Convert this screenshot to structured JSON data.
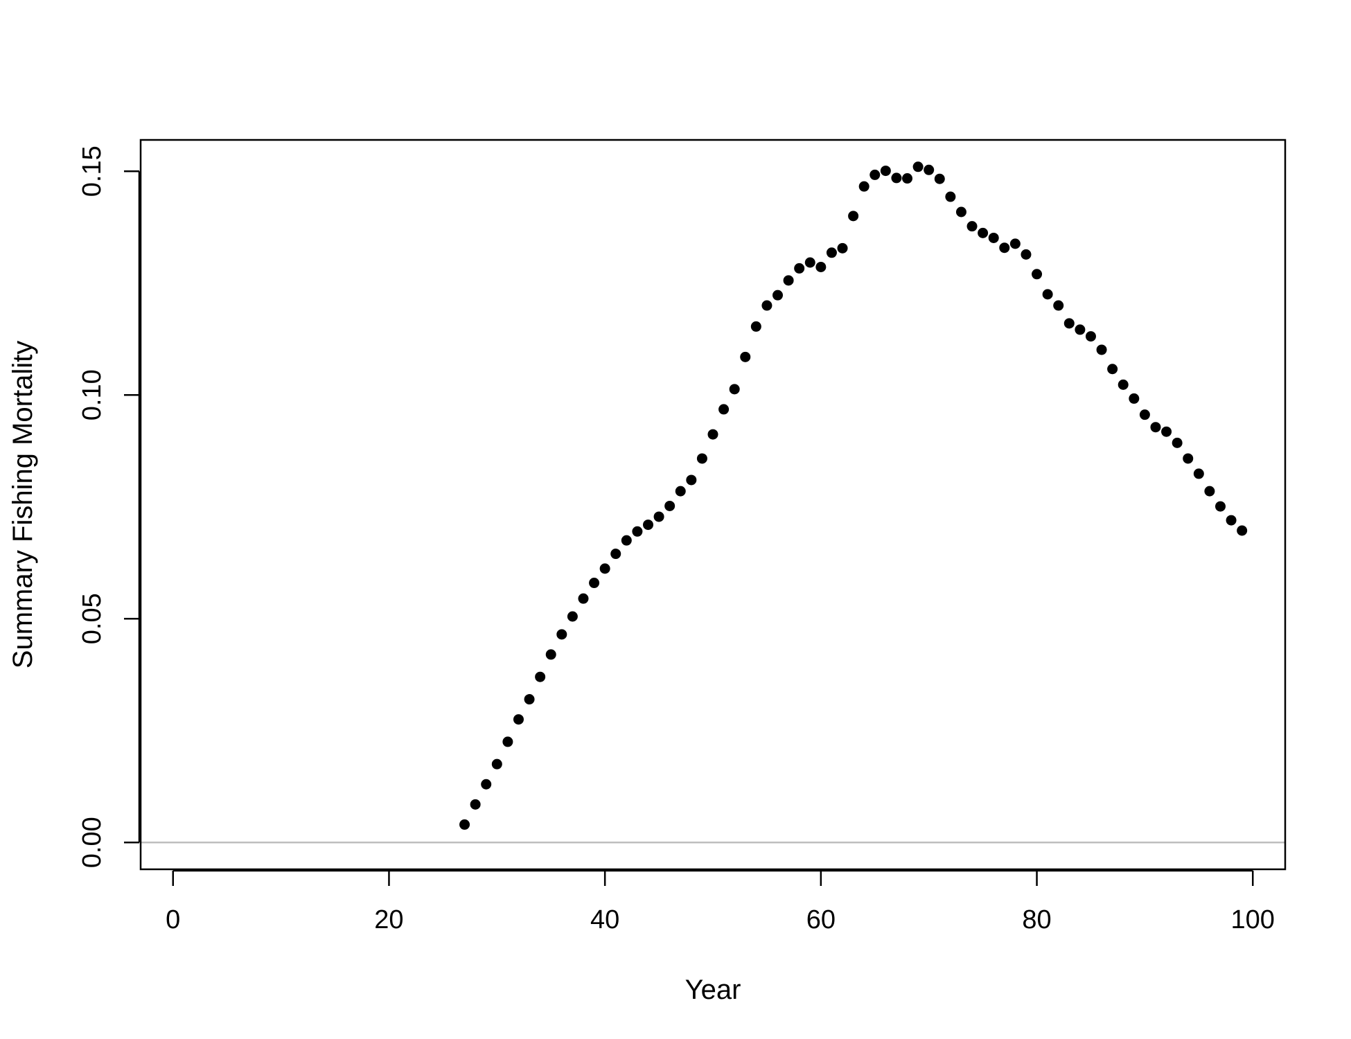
{
  "chart_data": {
    "type": "scatter",
    "xlabel": "Year",
    "ylabel": "Summary Fishing Mortality",
    "xlim": [
      -3,
      103
    ],
    "ylim": [
      -0.006,
      0.157
    ],
    "xticks": [
      0,
      20,
      40,
      60,
      80,
      100
    ],
    "xtick_labels": [
      "0",
      "20",
      "40",
      "60",
      "80",
      "100"
    ],
    "yticks": [
      0.0,
      0.05,
      0.1,
      0.15
    ],
    "ytick_labels": [
      "0.00",
      "0.05",
      "0.10",
      "0.15"
    ],
    "reference_line": {
      "y": 0,
      "color": "#bebebe"
    },
    "point_color": "#000000",
    "grid": false,
    "legend": "none",
    "series": [
      {
        "x": [
          27,
          28,
          29,
          30,
          31,
          32,
          33,
          34,
          35,
          36,
          37,
          38,
          39,
          40,
          41,
          42,
          43,
          44,
          45,
          46,
          47,
          48,
          49,
          50,
          51,
          52,
          53,
          54,
          55,
          56,
          57,
          58,
          59,
          60,
          61,
          62,
          63,
          64,
          65,
          66,
          67,
          68,
          69,
          70,
          71,
          72,
          73,
          74,
          75,
          76,
          77,
          78,
          79,
          80,
          81,
          82,
          83,
          84,
          85,
          86,
          87,
          88,
          89,
          90,
          91,
          92,
          93,
          94,
          95,
          96,
          97,
          98,
          99
        ],
        "y": [
          0.004,
          0.0085,
          0.013,
          0.0175,
          0.0225,
          0.0275,
          0.032,
          0.037,
          0.042,
          0.0465,
          0.0505,
          0.0545,
          0.058,
          0.0612,
          0.0645,
          0.0675,
          0.0695,
          0.071,
          0.0728,
          0.0752,
          0.0785,
          0.081,
          0.0858,
          0.0912,
          0.0968,
          0.1013,
          0.1085,
          0.1153,
          0.12,
          0.1223,
          0.1256,
          0.1283,
          0.1296,
          0.1286,
          0.1318,
          0.1328,
          0.14,
          0.1466,
          0.1492,
          0.1501,
          0.1485,
          0.1484,
          0.151,
          0.1503,
          0.1483,
          0.1443,
          0.1409,
          0.1377,
          0.1362,
          0.1351,
          0.1329,
          0.1338,
          0.1314,
          0.127,
          0.1225,
          0.12,
          0.116,
          0.1146,
          0.1131,
          0.1101,
          0.1058,
          0.1023,
          0.0992,
          0.0956,
          0.0928,
          0.0918,
          0.0893,
          0.0858,
          0.0824,
          0.0785,
          0.0751,
          0.072,
          0.0697
        ]
      }
    ]
  }
}
